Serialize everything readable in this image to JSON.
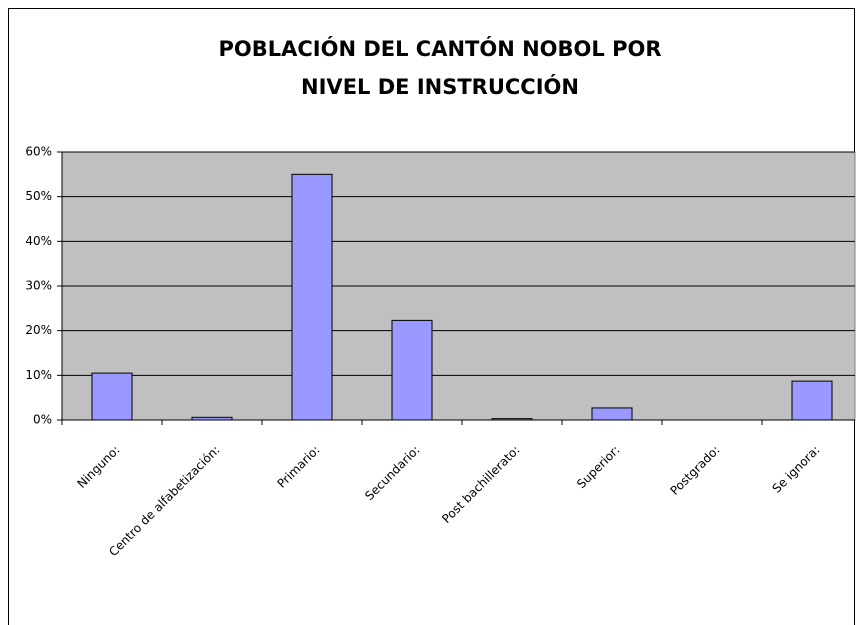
{
  "chart_data": {
    "type": "bar",
    "title": [
      "POBLACIÓN DEL CANTÓN NOBOL POR",
      "NIVEL DE INSTRUCCIÓN"
    ],
    "categories": [
      "Ninguno:",
      "Centro de alfabetización:",
      "Primario:",
      "Secundario:",
      "Post bachillerato:",
      "Superior:",
      "Postgrado:",
      "Se ignora:"
    ],
    "values": [
      10.5,
      0.6,
      55,
      22.3,
      0.3,
      2.7,
      0,
      8.7
    ],
    "color": "#9999ff",
    "ylim": [
      0,
      60
    ],
    "yticks": [
      {
        "value": 0,
        "label": "0%"
      },
      {
        "value": 10,
        "label": "10%"
      },
      {
        "value": 20,
        "label": "20%"
      },
      {
        "value": 30,
        "label": "30%"
      },
      {
        "value": 40,
        "label": "40%"
      },
      {
        "value": 50,
        "label": "50%"
      },
      {
        "value": 60,
        "label": "60%"
      }
    ],
    "grid": true
  }
}
